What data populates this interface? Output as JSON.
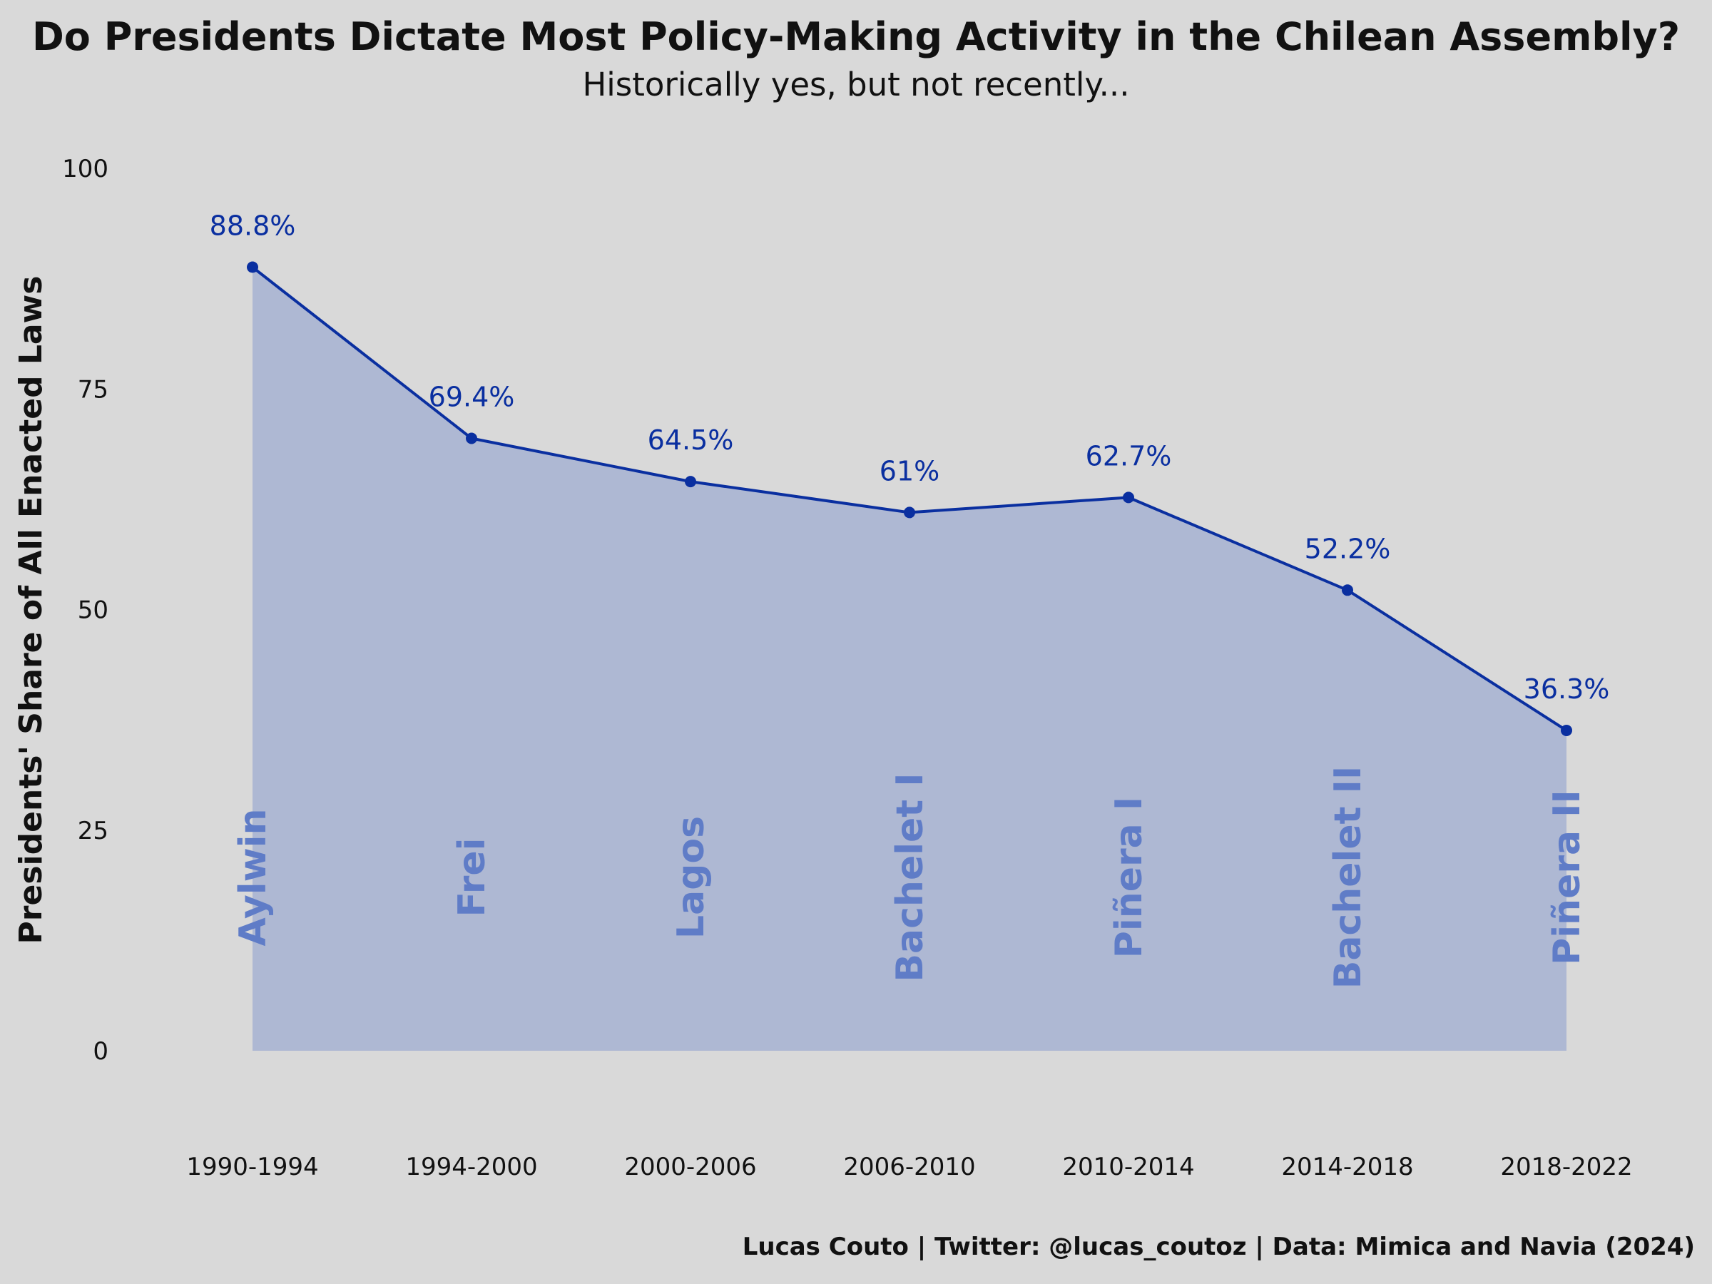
{
  "chart_data": {
    "type": "area",
    "title": "Do Presidents Dictate Most Policy-Making Activity in the Chilean Assembly?",
    "subtitle": "Historically yes, but not recently...",
    "xlabel": "",
    "ylabel": "Presidents' Share of All Enacted Laws",
    "caption": "Lucas Couto | Twitter: @lucas_coutoz | Data: Mimica and Navia (2024)",
    "categories": [
      "1990-1994",
      "1994-2000",
      "2000-2006",
      "2006-2010",
      "2010-2014",
      "2014-2018",
      "2018-2022"
    ],
    "presidents": [
      "Aylwin",
      "Frei",
      "Lagos",
      "Bachelet I",
      "Piñera I",
      "Bachelet II",
      "Piñera II"
    ],
    "values": [
      88.8,
      69.4,
      64.5,
      61,
      62.7,
      52.2,
      36.3
    ],
    "value_labels": [
      "88.8%",
      "69.4%",
      "64.5%",
      "61%",
      "62.7%",
      "52.2%",
      "36.3%"
    ],
    "ylim": [
      0,
      100
    ],
    "yticks": [
      0,
      25,
      50,
      75,
      100
    ],
    "grid": false,
    "legend": "none",
    "colors": {
      "background": "#d9d9d9",
      "line": "#0a2fa0",
      "fill": "#aeb8d3",
      "president_label": "#5f7cc7",
      "text": "#111111"
    }
  }
}
